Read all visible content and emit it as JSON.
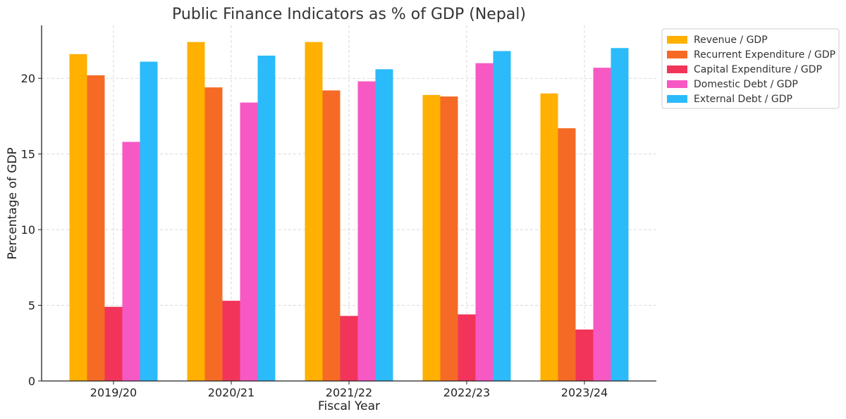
{
  "chart_data": {
    "type": "bar",
    "title": "Public Finance Indicators as % of GDP (Nepal)",
    "xlabel": "Fiscal Year",
    "ylabel": "Percentage of GDP",
    "categories": [
      "2019/20",
      "2020/21",
      "2021/22",
      "2022/23",
      "2023/24"
    ],
    "ylim": [
      0,
      23.5
    ],
    "yticks": [
      0,
      5,
      10,
      15,
      20
    ],
    "grid": true,
    "legend_position": "upper-right-outside",
    "series": [
      {
        "name": "Revenue / GDP",
        "color": "#FFB000",
        "values": [
          21.6,
          22.4,
          22.4,
          18.9,
          19.0
        ]
      },
      {
        "name": "Recurrent Expenditure / GDP",
        "color": "#F56B25",
        "values": [
          20.2,
          19.4,
          19.2,
          18.8,
          16.7
        ]
      },
      {
        "name": "Capital Expenditure / GDP",
        "color": "#F2345A",
        "values": [
          4.9,
          5.3,
          4.3,
          4.4,
          3.4
        ]
      },
      {
        "name": "Domestic Debt / GDP",
        "color": "#F759C4",
        "values": [
          15.8,
          18.4,
          19.8,
          21.0,
          20.7
        ]
      },
      {
        "name": "External Debt / GDP",
        "color": "#2BBBFA",
        "values": [
          21.1,
          21.5,
          20.6,
          21.8,
          22.0
        ]
      }
    ]
  }
}
